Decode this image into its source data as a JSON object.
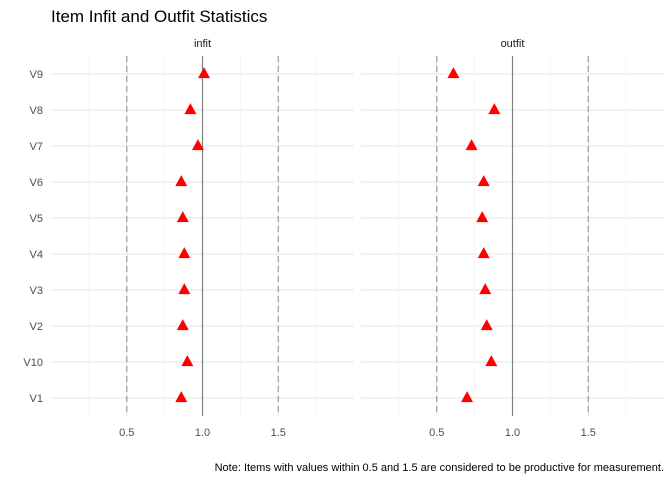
{
  "chart_data": {
    "type": "scatter",
    "title": "Item Infit and Outfit Statistics",
    "caption": "Note: Items with values within 0.5 and 1.5 are considered to be productive for measurement.",
    "categories": [
      "V1",
      "V10",
      "V2",
      "V3",
      "V4",
      "V5",
      "V6",
      "V7",
      "V8",
      "V9"
    ],
    "x_ticks": [
      0.5,
      1.0,
      1.5
    ],
    "x_tick_labels": [
      "0.5",
      "1.0",
      "1.5"
    ],
    "xlim": [
      0.0,
      2.0
    ],
    "reference_lines": {
      "solid": 1.0,
      "dashed": [
        0.5,
        1.5
      ]
    },
    "marker": "triangle",
    "marker_color": "#ff0000",
    "grid": true,
    "panels": [
      {
        "name": "infit",
        "values": [
          0.86,
          0.9,
          0.87,
          0.88,
          0.88,
          0.87,
          0.86,
          0.97,
          0.92,
          1.01
        ]
      },
      {
        "name": "outfit",
        "values": [
          0.7,
          0.86,
          0.83,
          0.82,
          0.81,
          0.8,
          0.81,
          0.73,
          0.88,
          0.61
        ]
      }
    ]
  }
}
